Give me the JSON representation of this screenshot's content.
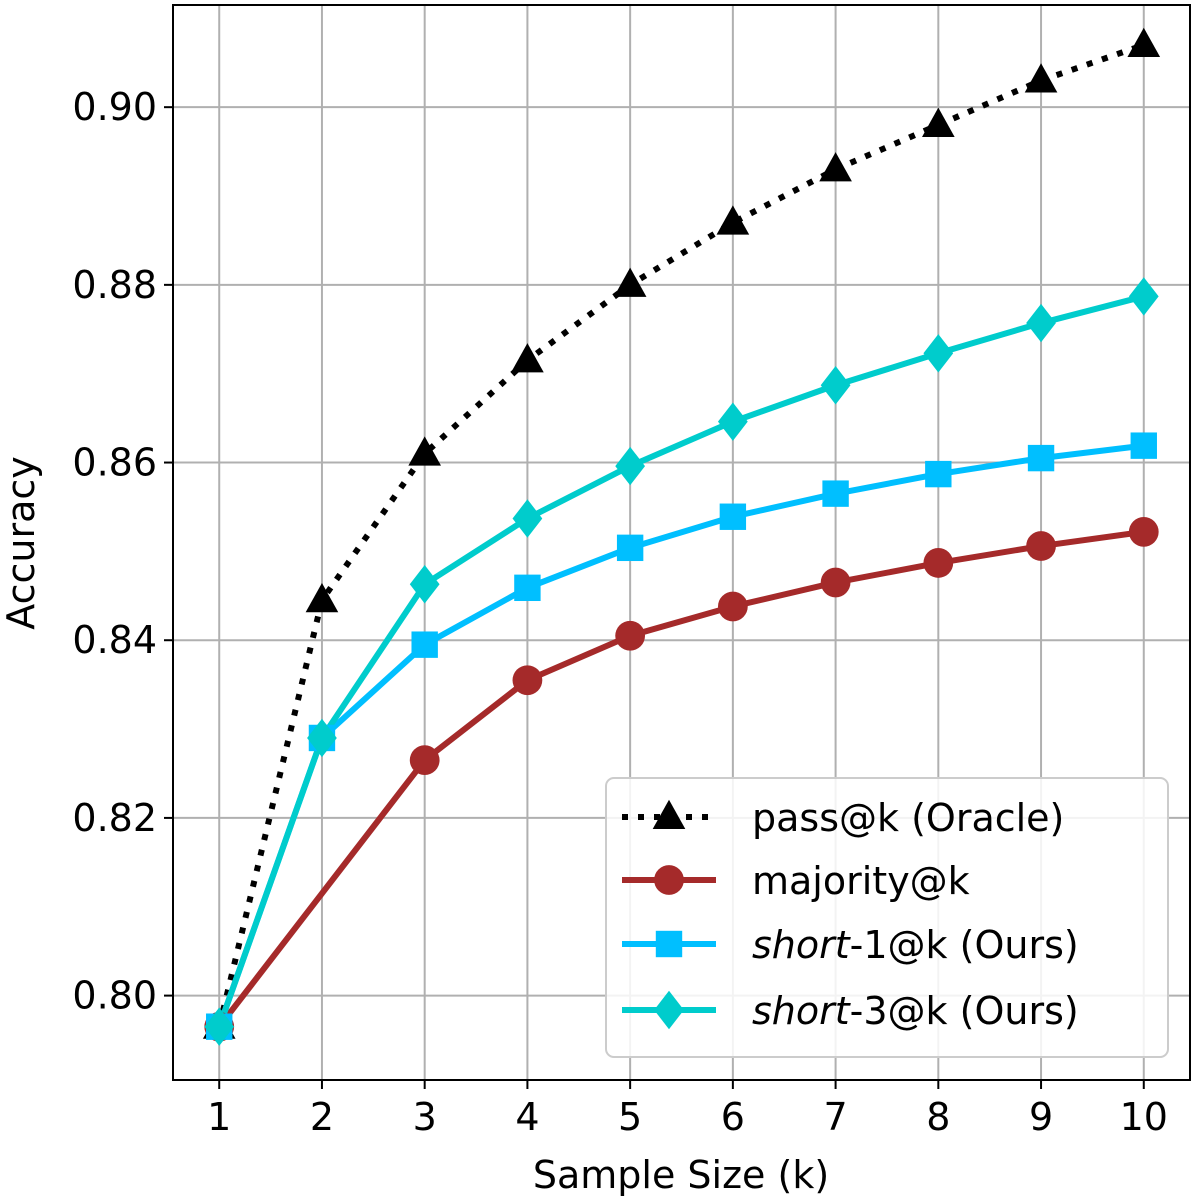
{
  "chart_data": {
    "type": "line",
    "xlabel": "Sample Size (k)",
    "ylabel": "Accuracy",
    "xlim": [
      0.55,
      10.45
    ],
    "ylim": [
      0.7905,
      0.9115
    ],
    "x_ticks": [
      1,
      2,
      3,
      4,
      5,
      6,
      7,
      8,
      9,
      10
    ],
    "x_tick_labels": [
      "1",
      "2",
      "3",
      "4",
      "5",
      "6",
      "7",
      "8",
      "9",
      "10"
    ],
    "y_ticks": [
      0.8,
      0.82,
      0.84,
      0.86,
      0.88,
      0.9
    ],
    "y_tick_labels": [
      "0.80",
      "0.82",
      "0.84",
      "0.86",
      "0.88",
      "0.90"
    ],
    "grid": true,
    "legend_position": "bottom-right",
    "x": [
      1,
      2,
      3,
      4,
      5,
      6,
      7,
      8,
      9,
      10
    ],
    "series": [
      {
        "name": "pass@k (Oracle)",
        "legend_parts": [
          {
            "text": "pass@k (Oracle)",
            "italic": false
          }
        ],
        "color": "#000000",
        "line_style": "dotted",
        "marker": "triangle",
        "values": [
          0.7965,
          0.8445,
          0.861,
          0.8715,
          0.88,
          0.887,
          0.893,
          0.898,
          0.903,
          0.907
        ]
      },
      {
        "name": "majority@k",
        "legend_parts": [
          {
            "text": "majority@k",
            "italic": false
          }
        ],
        "color": "#a52a2a",
        "line_style": "solid",
        "marker": "circle",
        "marker_skip": [
          1
        ],
        "values": [
          0.7965,
          0.8115,
          0.8265,
          0.8355,
          0.8405,
          0.8438,
          0.8465,
          0.8487,
          0.8506,
          0.8522
        ]
      },
      {
        "name": "short-1@k  (Ours)",
        "legend_parts": [
          {
            "text": "short",
            "italic": true
          },
          {
            "text": "-1@k  (Ours)",
            "italic": false
          }
        ],
        "color": "#00bfff",
        "line_style": "solid",
        "marker": "square",
        "values": [
          0.7965,
          0.829,
          0.8395,
          0.8459,
          0.8504,
          0.8539,
          0.8565,
          0.8587,
          0.8605,
          0.8619
        ]
      },
      {
        "name": "short-3@k  (Ours)",
        "legend_parts": [
          {
            "text": "short",
            "italic": true
          },
          {
            "text": "-3@k  (Ours)",
            "italic": false
          }
        ],
        "color": "#00cccc",
        "line_style": "solid",
        "marker": "diamond",
        "values": [
          0.7965,
          0.829,
          0.8463,
          0.8537,
          0.8596,
          0.8646,
          0.8687,
          0.8723,
          0.8757,
          0.8787
        ]
      }
    ]
  }
}
